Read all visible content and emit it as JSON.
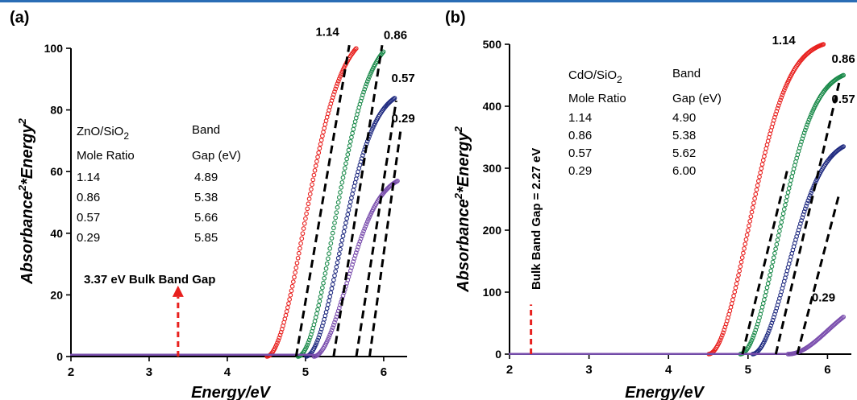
{
  "chart_data": [
    {
      "panel": "(a)",
      "type": "scatter",
      "xlabel": "Energy/eV",
      "ylabel": "Absorbance²*Energy²",
      "xlim": [
        2,
        6.3
      ],
      "ylim": [
        0,
        100
      ],
      "xticks": [
        2,
        3,
        4,
        5,
        6
      ],
      "yticks": [
        0,
        20,
        40,
        60,
        80,
        100
      ],
      "series": [
        {
          "name": "1.14",
          "color": "#e8201e",
          "onset": 4.5,
          "gap": 4.89,
          "x_end": 5.65,
          "y_end": 100,
          "curve_k": 2.2
        },
        {
          "name": "0.86",
          "color": "#1a8a4a",
          "onset": 4.9,
          "gap": 5.38,
          "x_end": 6.0,
          "y_end": 99,
          "curve_k": 2.4
        },
        {
          "name": "0.57",
          "color": "#1f2a80",
          "onset": 5.0,
          "gap": 5.66,
          "x_end": 6.15,
          "y_end": 84,
          "curve_k": 2.6
        },
        {
          "name": "0.29",
          "color": "#7b4fae",
          "onset": 5.1,
          "gap": 5.85,
          "x_end": 6.18,
          "y_end": 57,
          "curve_k": 2.8
        }
      ],
      "fit_lines": [
        {
          "x1": 4.88,
          "y1": 0,
          "x2": 5.56,
          "y2": 101
        },
        {
          "x1": 5.36,
          "y1": 0,
          "x2": 5.98,
          "y2": 101
        },
        {
          "x1": 5.65,
          "y1": 0,
          "x2": 6.16,
          "y2": 83
        },
        {
          "x1": 5.82,
          "y1": 0,
          "x2": 6.22,
          "y2": 74
        }
      ],
      "curve_labels": [
        {
          "text": "1.14",
          "x": 5.28,
          "y": 104
        },
        {
          "text": "0.86",
          "x": 6.15,
          "y": 103
        },
        {
          "text": "0.57",
          "x": 6.25,
          "y": 89
        },
        {
          "text": "0.29",
          "x": 6.25,
          "y": 76
        }
      ],
      "bulk_gap": {
        "value": 3.37,
        "label": "3.37 eV Bulk Band Gap",
        "arrow_top": 23,
        "color": "#e8201e"
      },
      "table": {
        "header_col1_line1": "ZnO/SiO",
        "header_col1_sub": "2",
        "header_col1_line2": "Mole Ratio",
        "header_col2_line1": "Band",
        "header_col2_line2": "Gap (eV)",
        "rows": [
          [
            "1.14",
            "4.89"
          ],
          [
            "0.86",
            "5.38"
          ],
          [
            "0.57",
            "5.66"
          ],
          [
            "0.29",
            "5.85"
          ]
        ]
      }
    },
    {
      "panel": "(b)",
      "type": "scatter",
      "xlabel": "Energy/eV",
      "ylabel": "Absorbance²*Energy²",
      "xlim": [
        2,
        6.3
      ],
      "ylim": [
        0,
        500
      ],
      "xticks": [
        2,
        3,
        4,
        5,
        6
      ],
      "yticks": [
        0,
        100,
        200,
        300,
        400,
        500
      ],
      "series": [
        {
          "name": "1.14",
          "color": "#e8201e",
          "onset": 4.5,
          "gap": 4.9,
          "x_end": 5.95,
          "y_end": 500,
          "curve_k": 2.0
        },
        {
          "name": "0.86",
          "color": "#1a8a4a",
          "onset": 4.9,
          "gap": 5.38,
          "x_end": 6.2,
          "y_end": 450,
          "curve_k": 2.3
        },
        {
          "name": "0.57",
          "color": "#1f2a80",
          "onset": 5.05,
          "gap": 5.62,
          "x_end": 6.2,
          "y_end": 335,
          "curve_k": 2.5
        },
        {
          "name": "0.29",
          "color": "#7b4fae",
          "onset": 5.5,
          "gap": 6.0,
          "x_end": 6.2,
          "y_end": 60,
          "curve_k": 2.0
        }
      ],
      "fit_lines": [
        {
          "x1": 4.93,
          "y1": 0,
          "x2": 5.5,
          "y2": 300
        },
        {
          "x1": 5.35,
          "y1": 0,
          "x2": 6.15,
          "y2": 440
        },
        {
          "x1": 5.62,
          "y1": 0,
          "x2": 6.15,
          "y2": 260
        }
      ],
      "curve_labels": [
        {
          "text": "1.14",
          "x": 5.45,
          "y": 500
        },
        {
          "text": "0.86",
          "x": 6.2,
          "y": 470
        },
        {
          "text": "0.57",
          "x": 6.2,
          "y": 405
        },
        {
          "text": "0.29",
          "x": 5.95,
          "y": 85
        }
      ],
      "bulk_gap": {
        "value": 2.27,
        "label": "Bulk Band Gap = 2.27 eV",
        "line_top": 80,
        "color": "#e8201e"
      },
      "table": {
        "header_col1_line1": "CdO/SiO",
        "header_col1_sub": "2",
        "header_col1_line2": "Mole Ratio",
        "header_col2_line1": "Band",
        "header_col2_line2": "Gap (eV)",
        "rows": [
          [
            "1.14",
            "4.90"
          ],
          [
            "0.86",
            "5.38"
          ],
          [
            "0.57",
            "5.62"
          ],
          [
            "0.29",
            "6.00"
          ]
        ]
      }
    }
  ]
}
